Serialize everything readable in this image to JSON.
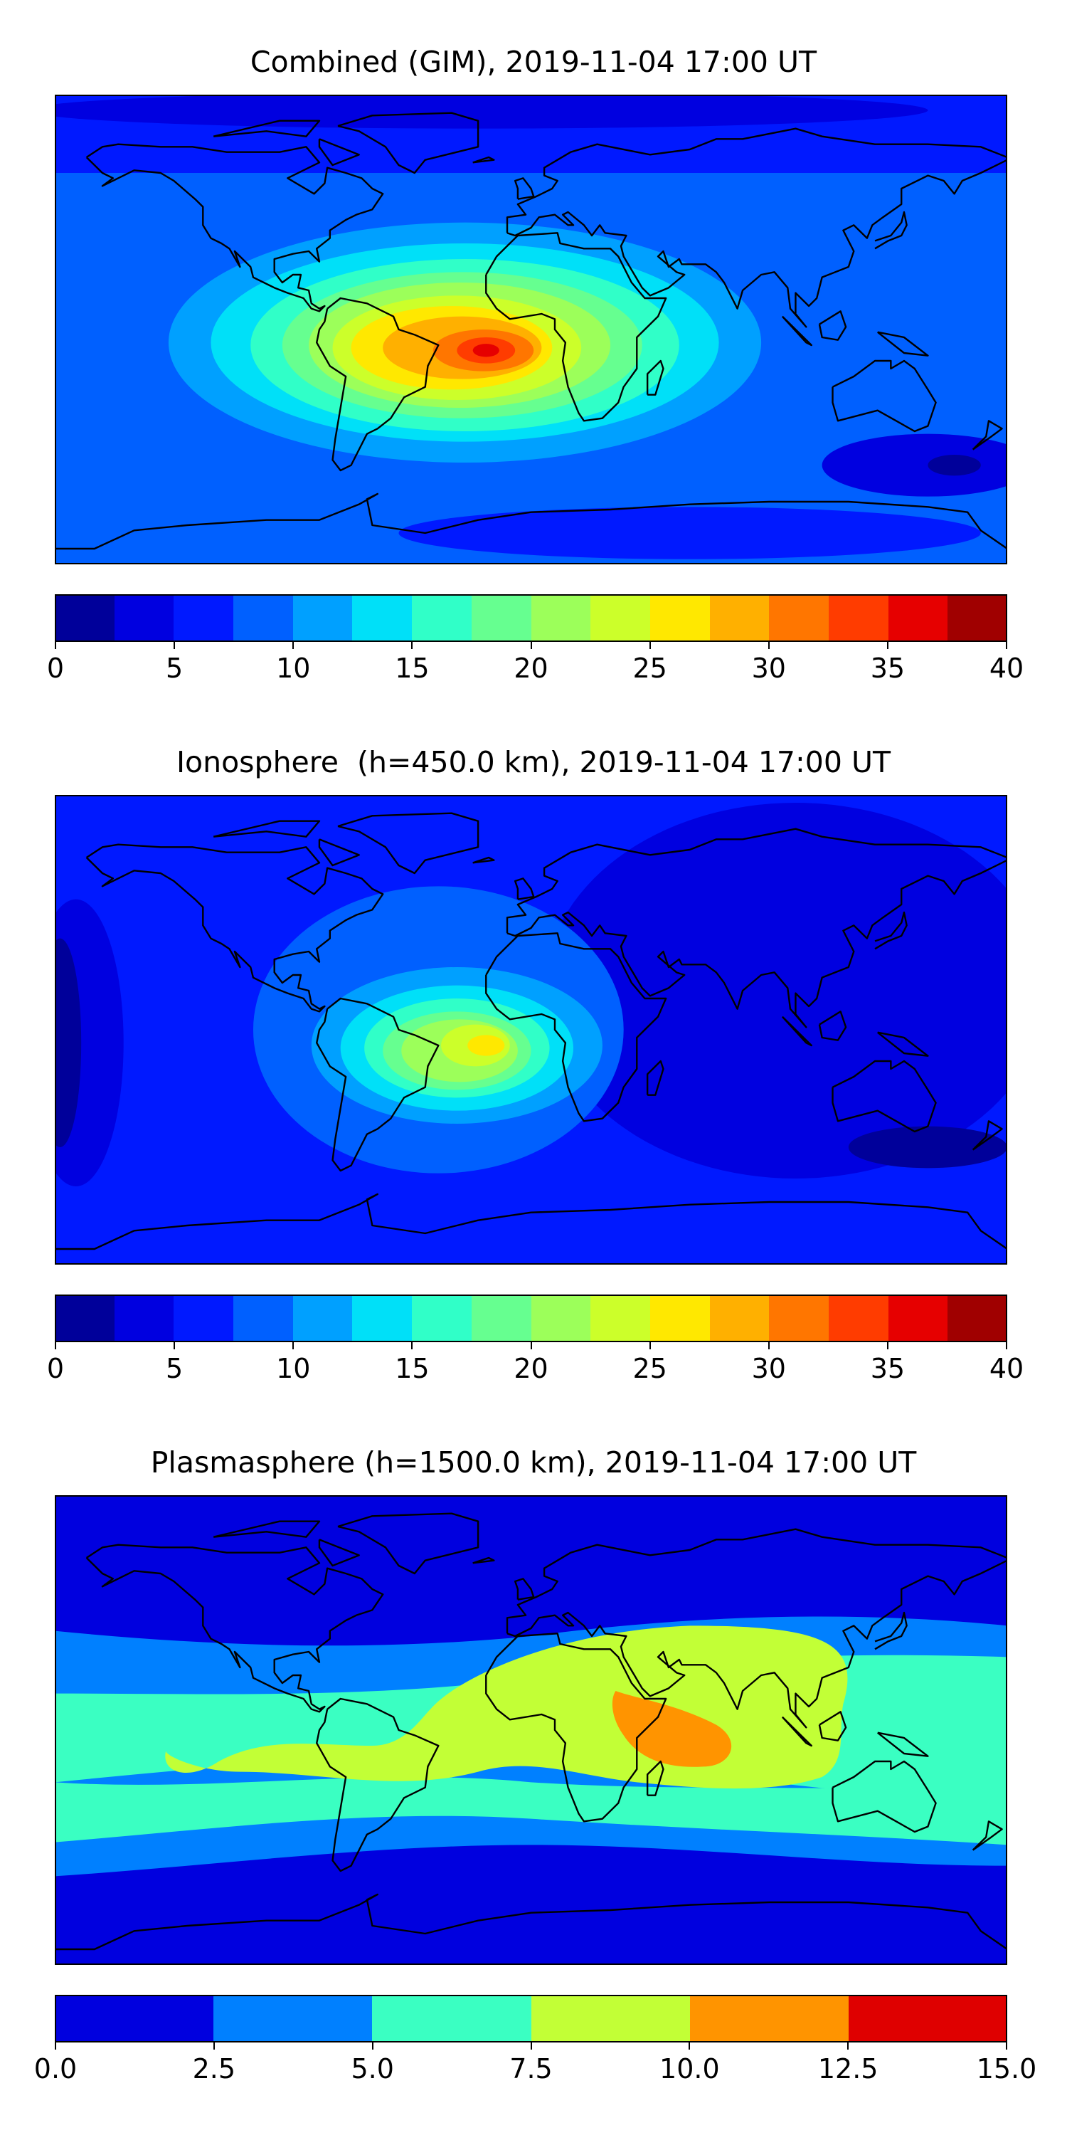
{
  "chart_data": [
    {
      "type": "heatmap",
      "subtype": "filled-contour-map",
      "title": "Combined (GIM), 2019-11-04 17:00 UT",
      "projection": "plate-carree",
      "xlim": [
        -180,
        180
      ],
      "ylim": [
        -90,
        90
      ],
      "levels": [
        0,
        2.5,
        5,
        7.5,
        10,
        12.5,
        15,
        17.5,
        20,
        22.5,
        25,
        27.5,
        30,
        32.5,
        35,
        37.5,
        40
      ],
      "ticks": [
        "0",
        "5",
        "10",
        "15",
        "20",
        "25",
        "30",
        "35",
        "40"
      ],
      "tick_values": [
        0,
        5,
        10,
        15,
        20,
        25,
        30,
        35,
        40
      ],
      "colors": [
        "#00009a",
        "#0000e0",
        "#0019ff",
        "#0060ff",
        "#00a0ff",
        "#00e0f8",
        "#30ffc8",
        "#66ff90",
        "#9cff5a",
        "#ccff2a",
        "#ffe800",
        "#ffb000",
        "#ff7600",
        "#ff3c00",
        "#e60000",
        "#a00000"
      ],
      "max_location": {
        "lon": -17,
        "lat": -8,
        "value_range": [
          35,
          37.5
        ]
      }
    },
    {
      "type": "heatmap",
      "subtype": "filled-contour-map",
      "title": "Ionosphere  (h=450.0 km), 2019-11-04 17:00 UT",
      "projection": "plate-carree",
      "xlim": [
        -180,
        180
      ],
      "ylim": [
        -90,
        90
      ],
      "levels": [
        0,
        2.5,
        5,
        7.5,
        10,
        12.5,
        15,
        17.5,
        20,
        22.5,
        25,
        27.5,
        30,
        32.5,
        35,
        37.5,
        40
      ],
      "ticks": [
        "0",
        "5",
        "10",
        "15",
        "20",
        "25",
        "30",
        "35",
        "40"
      ],
      "tick_values": [
        0,
        5,
        10,
        15,
        20,
        25,
        30,
        35,
        40
      ],
      "colors": [
        "#00009a",
        "#0000e0",
        "#0019ff",
        "#0060ff",
        "#00a0ff",
        "#00e0f8",
        "#30ffc8",
        "#66ff90",
        "#9cff5a",
        "#ccff2a",
        "#ffe800",
        "#ffb000",
        "#ff7600",
        "#ff3c00",
        "#e60000",
        "#a00000"
      ],
      "max_location": {
        "lon": -17,
        "lat": -6,
        "value_range": [
          25,
          27.5
        ]
      }
    },
    {
      "type": "heatmap",
      "subtype": "filled-contour-map",
      "title": "Plasmasphere (h=1500.0 km), 2019-11-04 17:00 UT",
      "projection": "plate-carree",
      "xlim": [
        -180,
        180
      ],
      "ylim": [
        -90,
        90
      ],
      "levels": [
        0,
        2.5,
        5,
        7.5,
        10,
        12.5,
        15
      ],
      "ticks": [
        "0.0",
        "2.5",
        "5.0",
        "7.5",
        "10.0",
        "12.5",
        "15.0"
      ],
      "tick_values": [
        0,
        2.5,
        5,
        7.5,
        10,
        12.5,
        15
      ],
      "colors": [
        "#0000df",
        "#0080ff",
        "#3affc2",
        "#c2ff36",
        "#ff9400",
        "#df0000"
      ],
      "max_location": {
        "lon": 50,
        "lat": 0,
        "value_range": [
          10,
          12.5
        ]
      }
    }
  ]
}
